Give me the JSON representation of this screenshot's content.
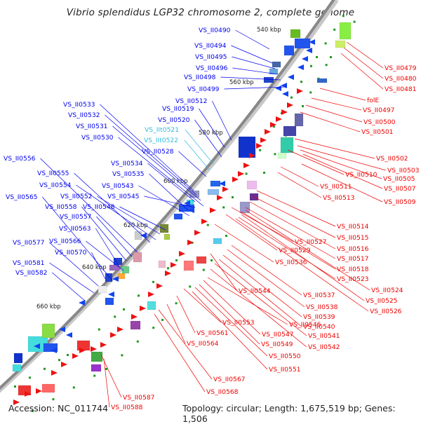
{
  "title": "Vibrio splendidus LGP32 chromosome 2, complete genome",
  "footer": {
    "accession": "Accession: NC_011744",
    "stats": "Topology: circular; Length: 1,675,519 bp; Genes: 1,506"
  },
  "ticks": [
    "540 kbp",
    "560 kbp",
    "580 kbp",
    "600 kbp",
    "620 kbp",
    "640 kbp",
    "660 kbp"
  ],
  "colors": {
    "minus_label": "#0000ee",
    "rna_label": "#33bbdd",
    "plus_label": "#ee0000",
    "backbone": "#888888"
  },
  "minus_labels": [
    "VS_II0490",
    "VS_II0494",
    "VS_II0495",
    "VS_II0496",
    "VS_II0498",
    "VS_II0499",
    "VS_II0512",
    "VS_II0519",
    "VS_II0520",
    "VS_IIt0521",
    "VS_IIt0522",
    "VS_II0528",
    "VS_II0533",
    "VS_II0532",
    "VS_II0531",
    "VS_II0530",
    "VS_II0534",
    "VS_II0535",
    "VS_II0543",
    "VS_II0545",
    "VS_II0548",
    "VS_II0552",
    "VS_II0554",
    "VS_II0555",
    "VS_II0556",
    "VS_II0565",
    "VS_II0558",
    "VS_II0557",
    "VS_II0563",
    "VS_II0566",
    "VS_II0570",
    "VS_II0577",
    "VS_II0581",
    "VS_II0582"
  ],
  "plus_labels": [
    "VS_II0479",
    "VS_II0480",
    "VS_II0481",
    "folE",
    "VS_II0497",
    "VS_II0500",
    "VS_II0501",
    "VS_II0502",
    "VS_II0503",
    "VS_II0505",
    "VS_II0507",
    "VS_II0509",
    "VS_II0510",
    "VS_II0511",
    "VS_II0513",
    "VS_II0514",
    "VS_II0515",
    "VS_II0516",
    "VS_II0517",
    "VS_II0518",
    "VS_II0523",
    "VS_II0524",
    "VS_II0525",
    "VS_II0526",
    "VS_II0527",
    "VS_II0529",
    "VS_II0536",
    "VS_II0537",
    "VS_II0538",
    "VS_II0539",
    "VS_II0540",
    "VS_II0541",
    "VS_II0542",
    "VS_II0544",
    "VS_II0546",
    "VS_II0547",
    "VS_II0549",
    "VS_II0550",
    "VS_II0551",
    "VS_II0553",
    "VS_II0561",
    "VS_II0564",
    "VS_II0567",
    "VS_II0568",
    "VS_II0587",
    "VS_II0588"
  ]
}
